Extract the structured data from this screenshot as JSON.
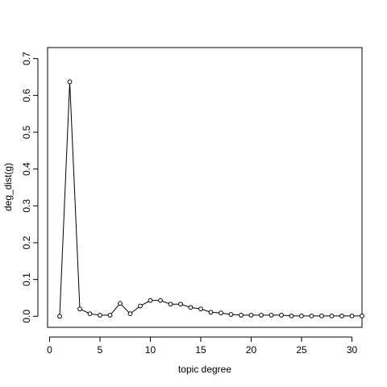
{
  "chart_data": {
    "type": "line",
    "title": "",
    "xlabel": "topic degree",
    "ylabel": "deg_dist(g)",
    "xlim": [
      -0.2,
      31
    ],
    "ylim": [
      -0.03,
      0.73
    ],
    "x_ticks": [
      0,
      5,
      10,
      15,
      20,
      25,
      30
    ],
    "y_ticks": [
      0.0,
      0.1,
      0.2,
      0.3,
      0.4,
      0.5,
      0.6,
      0.7
    ],
    "y_tick_labels": [
      "0.0",
      "0.1",
      "0.2",
      "0.3",
      "0.4",
      "0.5",
      "0.6",
      "0.7"
    ],
    "grid": false,
    "marker": "open-circle",
    "series": [
      {
        "x": [
          1,
          2,
          3,
          4,
          5,
          6,
          7,
          8,
          9,
          10,
          11,
          12,
          13,
          14,
          15,
          16,
          17,
          18,
          19,
          20,
          21,
          22,
          23,
          24,
          25,
          26,
          27,
          28,
          29,
          30,
          31
        ],
        "y": [
          0.0,
          0.637,
          0.02,
          0.007,
          0.003,
          0.003,
          0.035,
          0.007,
          0.028,
          0.043,
          0.043,
          0.033,
          0.033,
          0.024,
          0.02,
          0.011,
          0.009,
          0.005,
          0.003,
          0.003,
          0.003,
          0.003,
          0.003,
          0.001,
          0.001,
          0.001,
          0.001,
          0.001,
          0.001,
          0.001,
          0.001
        ]
      }
    ]
  }
}
